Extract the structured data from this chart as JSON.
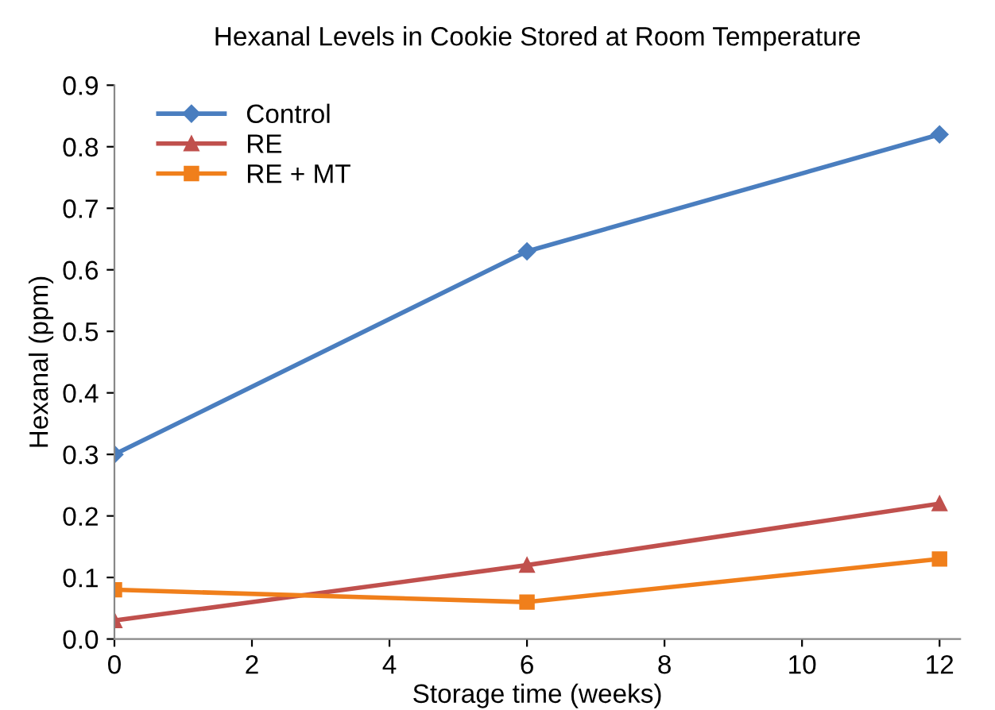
{
  "chart_data": {
    "type": "line",
    "title": "Hexanal Levels in Cookie Stored at Room Temperature",
    "xlabel": "Storage time (weeks)",
    "ylabel": "Hexanal (ppm)",
    "x": [
      0,
      6,
      12
    ],
    "series": [
      {
        "name": "Control",
        "color": "#4a7ebf",
        "marker": "diamond",
        "values": [
          0.3,
          0.63,
          0.82
        ]
      },
      {
        "name": "RE",
        "color": "#c0504d",
        "marker": "triangle",
        "values": [
          0.03,
          0.12,
          0.22
        ]
      },
      {
        "name": "RE + MT",
        "color": "#f07f1b",
        "marker": "square",
        "values": [
          0.08,
          0.06,
          0.13
        ]
      }
    ],
    "xlim": [
      0,
      12.3
    ],
    "xticks": [
      0,
      2,
      4,
      6,
      8,
      10,
      12
    ],
    "ylim": [
      0,
      0.9
    ],
    "yticks": [
      {
        "value": 0,
        "label": "0.0"
      },
      0.1,
      0.2,
      0.3,
      0.4,
      0.5,
      0.6,
      0.7,
      0.8,
      0.9
    ],
    "grid": false,
    "legend": "top left",
    "line_style": "solid"
  }
}
